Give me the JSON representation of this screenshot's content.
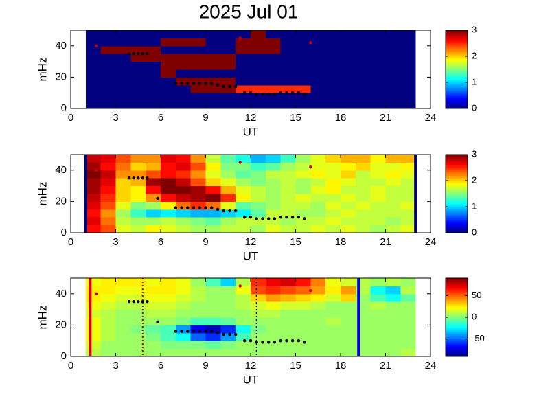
{
  "chart_data": [
    {
      "type": "heatmap",
      "title": "2025 Jul 01",
      "xlabel": "UT",
      "ylabel": "mHz",
      "xlim": [
        0,
        24
      ],
      "ylim": [
        0,
        50
      ],
      "xticks": [
        0,
        3,
        6,
        9,
        12,
        15,
        18,
        21,
        24
      ],
      "yticks": [
        0,
        20,
        40
      ],
      "x": [
        1.5,
        2.5,
        3.5,
        4.5,
        5.5,
        6.5,
        7.5,
        8.5,
        9.5,
        10.5,
        11.5,
        12.5,
        13.5,
        14.5,
        15.5,
        16.5,
        17.5,
        18.5,
        19.5,
        20.5,
        21.5,
        22.5
      ],
      "y": [
        2.5,
        7.5,
        12.5,
        17.5,
        22.5,
        27.5,
        32.5,
        37.5,
        42.5,
        47.5
      ],
      "values": [
        [
          0,
          0,
          0,
          0,
          0,
          0,
          0,
          0,
          0,
          0,
          0,
          0,
          0,
          0,
          0,
          0,
          0,
          0,
          0,
          0,
          0,
          0
        ],
        [
          0,
          0,
          0,
          0,
          0,
          0,
          0,
          0,
          0,
          0,
          0,
          0,
          0,
          0,
          0,
          0,
          0,
          0,
          0,
          0,
          0,
          0
        ],
        [
          0,
          0,
          0,
          0,
          0,
          0,
          0,
          3,
          3,
          3,
          2.5,
          2.5,
          2.5,
          2.5,
          2.5,
          0,
          0,
          0,
          0,
          0,
          0,
          0
        ],
        [
          0,
          0,
          0,
          0,
          0,
          0,
          3,
          3,
          3,
          3,
          0,
          0,
          0,
          0,
          0,
          0,
          0,
          0,
          0,
          0,
          0,
          0
        ],
        [
          0,
          0,
          0,
          0,
          0,
          3,
          0,
          0,
          0,
          0,
          0,
          0,
          0,
          0,
          0,
          0,
          0,
          0,
          0,
          0,
          0,
          0
        ],
        [
          0,
          0,
          0,
          0,
          0,
          3,
          3,
          3,
          3,
          3,
          0,
          0,
          0,
          0,
          0,
          0,
          0,
          0,
          0,
          0,
          0,
          0
        ],
        [
          0,
          0,
          0,
          3,
          3,
          3,
          3,
          3,
          3,
          3,
          0,
          0,
          0,
          0,
          0,
          0,
          0,
          0,
          0,
          0,
          0,
          0
        ],
        [
          0,
          3,
          3,
          3,
          3,
          0,
          0,
          0,
          0,
          0,
          3,
          3,
          3,
          0,
          0,
          0,
          0,
          0,
          0,
          0,
          0,
          0
        ],
        [
          0,
          0,
          0,
          0,
          0,
          3,
          3,
          3,
          0,
          0,
          3,
          3,
          3,
          0,
          0,
          0,
          0,
          0,
          0,
          0,
          0,
          0
        ],
        [
          0,
          0,
          0,
          0,
          0,
          0,
          0,
          0,
          0,
          0,
          0,
          3,
          0,
          0,
          0,
          0,
          0,
          0,
          0,
          0,
          0,
          0
        ]
      ],
      "colorbar": {
        "lim": [
          0,
          3
        ],
        "ticks": [
          0,
          1,
          2,
          3
        ]
      },
      "markers": {
        "color": "#000000",
        "x": [
          3.9,
          4.2,
          4.5,
          4.8,
          5.1,
          7.0,
          7.4,
          7.8,
          8.2,
          8.6,
          9.0,
          9.4,
          9.8,
          10.2,
          10.6,
          11.0,
          11.6,
          12.0,
          12.4,
          12.8,
          13.2,
          13.6,
          14.0,
          14.4,
          14.8,
          15.2,
          15.6
        ],
        "y": [
          35,
          35,
          35,
          35,
          35,
          16,
          16,
          16,
          16,
          16,
          16,
          16,
          15,
          14,
          14,
          14,
          10,
          10,
          9,
          9,
          9,
          9,
          10,
          10,
          10,
          10,
          9
        ]
      },
      "red_markers": {
        "color": "#d00000",
        "x": [
          1.7,
          16.0,
          11.3
        ],
        "y": [
          40,
          42,
          45
        ]
      }
    },
    {
      "type": "heatmap",
      "xlabel": "UT",
      "ylabel": "mHz",
      "xlim": [
        0,
        24
      ],
      "ylim": [
        0,
        50
      ],
      "xticks": [
        0,
        3,
        6,
        9,
        12,
        15,
        18,
        21,
        24
      ],
      "yticks": [
        0,
        20,
        40
      ],
      "x": [
        1.5,
        2.5,
        3.5,
        4.5,
        5.5,
        6.5,
        7.5,
        8.5,
        9.5,
        10.5,
        11.5,
        12.5,
        13.5,
        14.5,
        15.5,
        16.5,
        17.5,
        18.5,
        19.5,
        20.5,
        21.5,
        22.5
      ],
      "y": [
        2.5,
        7.5,
        12.5,
        17.5,
        22.5,
        27.5,
        32.5,
        37.5,
        42.5,
        47.5
      ],
      "values": [
        [
          2.6,
          2.4,
          1.8,
          1.7,
          1.9,
          1.8,
          1.7,
          1.6,
          1.6,
          1.7,
          1.7,
          1.6,
          1.8,
          1.7,
          1.7,
          1.8,
          1.7,
          1.8,
          1.7,
          1.6,
          1.7,
          1.8
        ],
        [
          2.7,
          2.3,
          1.7,
          1.6,
          1.6,
          1.7,
          1.6,
          1.5,
          1.4,
          1.6,
          1.7,
          1.7,
          1.7,
          1.6,
          1.7,
          1.7,
          1.8,
          1.7,
          1.7,
          1.7,
          1.6,
          1.7
        ],
        [
          2.6,
          2.2,
          1.6,
          1.3,
          1.0,
          1.1,
          1.0,
          0.9,
          0.9,
          1.0,
          1.1,
          1.4,
          1.7,
          1.7,
          1.6,
          1.6,
          1.7,
          1.8,
          1.7,
          1.7,
          1.7,
          1.7
        ],
        [
          2.7,
          2.4,
          1.8,
          1.5,
          1.6,
          1.9,
          2.3,
          2.5,
          2.3,
          1.8,
          1.4,
          1.5,
          1.6,
          1.7,
          1.7,
          1.6,
          1.8,
          1.7,
          1.8,
          1.7,
          1.7,
          1.8
        ],
        [
          2.8,
          2.5,
          2.0,
          1.9,
          2.2,
          2.6,
          2.8,
          2.9,
          3.0,
          2.5,
          1.9,
          1.7,
          1.6,
          1.7,
          1.8,
          1.7,
          1.7,
          1.8,
          1.7,
          1.8,
          1.7,
          1.7
        ],
        [
          2.9,
          2.6,
          2.0,
          1.9,
          2.6,
          3.0,
          3.0,
          2.9,
          2.6,
          2.1,
          1.8,
          1.7,
          1.6,
          1.7,
          1.6,
          1.8,
          1.9,
          1.7,
          1.7,
          1.8,
          1.7,
          1.7
        ],
        [
          2.9,
          2.7,
          2.0,
          2.1,
          2.9,
          3.0,
          2.8,
          2.4,
          2.0,
          1.8,
          1.6,
          1.5,
          1.6,
          1.7,
          1.6,
          1.7,
          1.9,
          1.8,
          1.7,
          1.7,
          1.8,
          1.7
        ],
        [
          3.0,
          2.8,
          2.2,
          2.2,
          2.4,
          2.6,
          2.5,
          2.2,
          1.8,
          1.6,
          1.4,
          1.5,
          1.7,
          1.7,
          1.8,
          1.9,
          1.8,
          2.0,
          1.7,
          1.8,
          1.9,
          1.8
        ],
        [
          2.9,
          2.6,
          2.3,
          2.0,
          2.1,
          2.6,
          2.7,
          2.4,
          1.9,
          1.5,
          1.5,
          1.3,
          1.4,
          1.6,
          1.7,
          1.8,
          1.8,
          1.9,
          2.0,
          1.8,
          1.8,
          1.9
        ],
        [
          2.8,
          2.7,
          2.4,
          2.2,
          2.2,
          2.7,
          2.6,
          2.2,
          1.7,
          1.4,
          1.2,
          0.9,
          1.0,
          1.3,
          1.6,
          1.8,
          2.0,
          2.1,
          2.1,
          1.9,
          2.1,
          2.1
        ]
      ],
      "colorbar": {
        "lim": [
          0,
          3
        ],
        "ticks": [
          0,
          1,
          2,
          3
        ]
      },
      "markers": {
        "color": "#000000",
        "x": [
          3.9,
          4.2,
          4.5,
          4.8,
          5.1,
          5.8,
          7.0,
          7.4,
          7.8,
          8.2,
          8.6,
          9.0,
          9.4,
          9.8,
          10.2,
          10.6,
          11.0,
          11.6,
          12.0,
          12.4,
          12.8,
          13.2,
          13.6,
          14.0,
          14.4,
          14.8,
          15.2,
          15.6
        ],
        "y": [
          35,
          35,
          35,
          35,
          35,
          22,
          16,
          16,
          16,
          16,
          16,
          16,
          16,
          15,
          14,
          14,
          14,
          10,
          10,
          9,
          9,
          9,
          9,
          10,
          10,
          10,
          10,
          9
        ]
      },
      "red_markers": {
        "color": "#d00000",
        "x": [
          1.7,
          16.0,
          11.3
        ],
        "y": [
          40,
          42,
          45
        ]
      },
      "vlines": [
        {
          "x": 1.0,
          "color": "#000080",
          "style": "solid"
        },
        {
          "x": 23.0,
          "color": "#000080",
          "style": "solid"
        }
      ]
    },
    {
      "type": "heatmap",
      "xlabel": "UT",
      "ylabel": "mHz",
      "xlim": [
        0,
        24
      ],
      "ylim": [
        0,
        50
      ],
      "xticks": [
        0,
        3,
        6,
        9,
        12,
        15,
        18,
        21,
        24
      ],
      "yticks": [
        0,
        20,
        40
      ],
      "x": [
        1.5,
        2.5,
        3.5,
        4.5,
        5.5,
        6.5,
        7.5,
        8.5,
        9.5,
        10.5,
        11.5,
        12.5,
        13.5,
        14.5,
        15.5,
        16.5,
        17.5,
        18.5,
        19.5,
        20.5,
        21.5,
        22.5
      ],
      "y": [
        2.5,
        7.5,
        12.5,
        17.5,
        22.5,
        27.5,
        32.5,
        37.5,
        42.5,
        47.5
      ],
      "values": [
        [
          10,
          5,
          5,
          5,
          5,
          5,
          5,
          5,
          5,
          5,
          5,
          5,
          5,
          5,
          5,
          5,
          5,
          5,
          5,
          5,
          5,
          10
        ],
        [
          15,
          5,
          5,
          5,
          5,
          0,
          0,
          0,
          -5,
          0,
          5,
          5,
          5,
          5,
          5,
          5,
          5,
          5,
          5,
          5,
          5,
          5
        ],
        [
          20,
          10,
          5,
          5,
          0,
          -10,
          -20,
          -50,
          -60,
          -40,
          -10,
          5,
          5,
          5,
          5,
          5,
          5,
          5,
          5,
          5,
          5,
          5
        ],
        [
          20,
          10,
          5,
          0,
          -5,
          -10,
          -40,
          -70,
          -80,
          -60,
          -20,
          0,
          5,
          5,
          5,
          5,
          5,
          5,
          5,
          5,
          5,
          5
        ],
        [
          20,
          10,
          5,
          5,
          5,
          5,
          0,
          -10,
          -10,
          -5,
          5,
          5,
          5,
          5,
          5,
          5,
          10,
          5,
          5,
          5,
          5,
          5
        ],
        [
          15,
          10,
          5,
          5,
          10,
          10,
          5,
          5,
          5,
          5,
          5,
          10,
          10,
          5,
          5,
          5,
          5,
          5,
          5,
          5,
          5,
          5
        ],
        [
          20,
          15,
          10,
          10,
          15,
          15,
          10,
          5,
          5,
          5,
          10,
          15,
          20,
          15,
          15,
          10,
          5,
          5,
          5,
          10,
          5,
          5
        ],
        [
          25,
          20,
          15,
          15,
          20,
          20,
          15,
          10,
          5,
          5,
          10,
          30,
          40,
          35,
          30,
          25,
          15,
          30,
          5,
          -10,
          -20,
          -5
        ],
        [
          25,
          25,
          20,
          20,
          25,
          25,
          20,
          10,
          5,
          5,
          20,
          55,
          60,
          55,
          50,
          40,
          25,
          40,
          10,
          -20,
          -30,
          10
        ],
        [
          20,
          25,
          25,
          25,
          20,
          25,
          20,
          5,
          -10,
          -30,
          10,
          60,
          70,
          75,
          65,
          45,
          20,
          15,
          10,
          5,
          10,
          5
        ]
      ],
      "colorbar": {
        "lim": [
          -90,
          90
        ],
        "ticks": [
          -50,
          0,
          50
        ]
      },
      "markers": {
        "color": "#000000",
        "x": [
          3.9,
          4.2,
          4.5,
          4.8,
          5.1,
          5.8,
          7.0,
          7.4,
          7.8,
          8.2,
          8.6,
          9.0,
          9.4,
          9.8,
          10.2,
          10.6,
          11.0,
          11.6,
          12.0,
          12.4,
          12.8,
          13.2,
          13.6,
          14.0,
          14.4,
          14.8,
          15.2,
          15.6
        ],
        "y": [
          35,
          35,
          35,
          35,
          35,
          22,
          16,
          16,
          16,
          16,
          16,
          16,
          16,
          15,
          14,
          14,
          14,
          10,
          10,
          9,
          9,
          9,
          9,
          10,
          10,
          10,
          10,
          9
        ]
      },
      "red_markers": {
        "color": "#d00000",
        "x": [
          1.7,
          16.0,
          11.3
        ],
        "y": [
          40,
          42,
          45
        ]
      },
      "vlines": [
        {
          "x": 1.3,
          "color": "#e00000",
          "style": "solid"
        },
        {
          "x": 4.8,
          "color": "#c00000",
          "style": "dotted"
        },
        {
          "x": 12.4,
          "color": "#000080",
          "style": "dotted"
        },
        {
          "x": 19.2,
          "color": "#0000e0",
          "style": "solid"
        }
      ]
    }
  ]
}
